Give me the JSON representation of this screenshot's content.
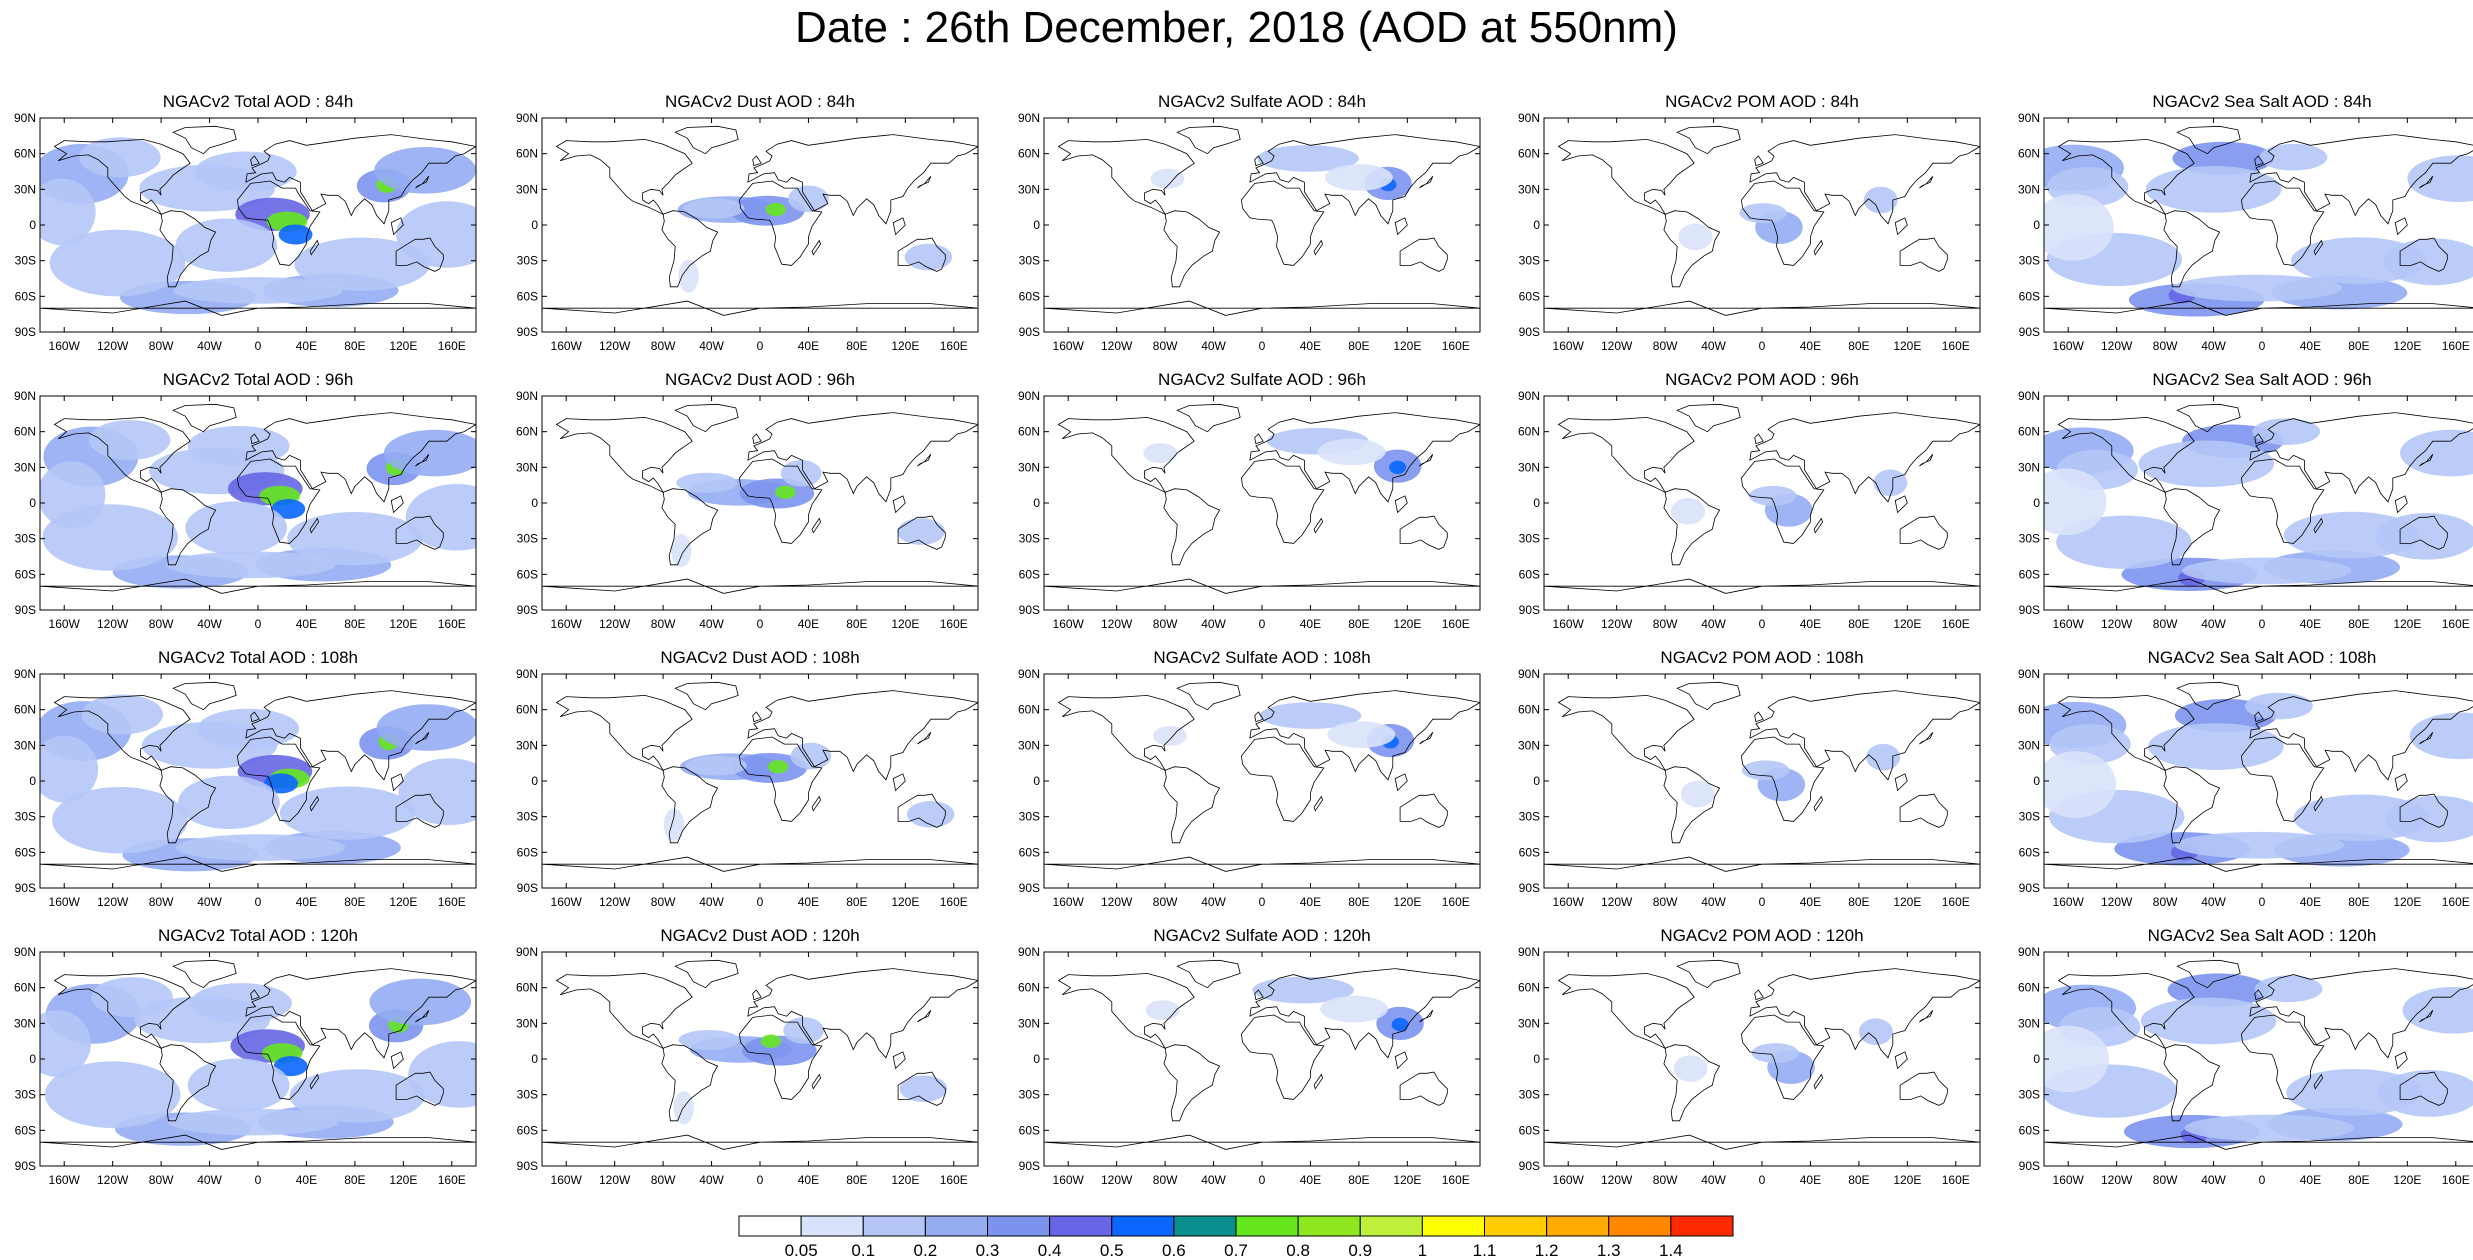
{
  "title": "Date : 26th December, 2018 (AOD at 550nm)",
  "columns": [
    {
      "key": "total",
      "icon": "total-aod-map"
    },
    {
      "key": "dust",
      "icon": "dust-aod-map"
    },
    {
      "key": "sulfate",
      "icon": "sulfate-aod-map"
    },
    {
      "key": "pom",
      "icon": "pom-aod-map"
    },
    {
      "key": "seasalt",
      "icon": "seasalt-aod-map"
    }
  ],
  "panels": [
    [
      "NGACv2 Total AOD : 84h",
      "NGACv2 Dust AOD : 84h",
      "NGACv2 Sulfate AOD : 84h",
      "NGACv2 POM AOD : 84h",
      "NGACv2 Sea Salt AOD : 84h"
    ],
    [
      "NGACv2 Total AOD : 96h",
      "NGACv2 Dust AOD : 96h",
      "NGACv2 Sulfate AOD : 96h",
      "NGACv2 POM AOD : 96h",
      "NGACv2 Sea Salt AOD : 96h"
    ],
    [
      "NGACv2 Total AOD : 108h",
      "NGACv2 Dust AOD : 108h",
      "NGACv2 Sulfate AOD : 108h",
      "NGACv2 POM AOD : 108h",
      "NGACv2 Sea Salt AOD : 108h"
    ],
    [
      "NGACv2 Total AOD : 120h",
      "NGACv2 Dust AOD : 120h",
      "NGACv2 Sulfate AOD : 120h",
      "NGACv2 POM AOD : 120h",
      "NGACv2 Sea Salt  AOD : 120h"
    ]
  ],
  "lat_ticks": [
    "90N",
    "60N",
    "30N",
    "0",
    "30S",
    "60S",
    "90S"
  ],
  "lon_ticks": [
    "160W",
    "120W",
    "80W",
    "40W",
    "0",
    "40E",
    "80E",
    "120E",
    "160E"
  ],
  "colorbar": {
    "levels": [
      "0.05",
      "0.1",
      "0.2",
      "0.3",
      "0.4",
      "0.5",
      "0.6",
      "0.7",
      "0.8",
      "0.9",
      "1",
      "1.1",
      "1.2",
      "1.3",
      "1.4"
    ],
    "colors": [
      "#ffffff",
      "#d9e2fb",
      "#b4c6f7",
      "#95acf3",
      "#7c93ee",
      "#6666e6",
      "#0a66ff",
      "#0a8f8f",
      "#66e61f",
      "#8ee61f",
      "#bfef3a",
      "#ffff00",
      "#ffcc00",
      "#ffaa00",
      "#ff8800",
      "#ff2a00"
    ]
  }
}
